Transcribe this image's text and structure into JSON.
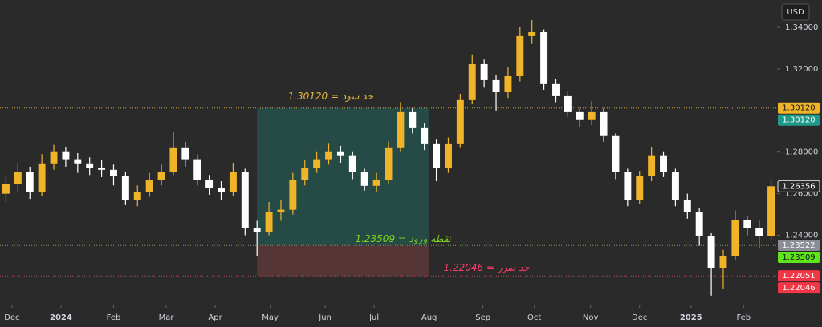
{
  "chart_data": {
    "type": "candlestick",
    "currency": "USD",
    "xlim": [
      -0.5,
      64.5
    ],
    "ylim": [
      1.2067,
      1.3531
    ],
    "xticks": [
      {
        "value": 0.5,
        "label": "Dec"
      },
      {
        "value": 4.6,
        "label": "2024"
      },
      {
        "value": 9.0,
        "label": "Feb"
      },
      {
        "value": 13.4,
        "label": "Mar"
      },
      {
        "value": 17.5,
        "label": "Apr"
      },
      {
        "value": 22.1,
        "label": "May"
      },
      {
        "value": 26.7,
        "label": "Jun"
      },
      {
        "value": 30.8,
        "label": "Jul"
      },
      {
        "value": 35.4,
        "label": "Aug"
      },
      {
        "value": 39.9,
        "label": "Sep"
      },
      {
        "value": 44.2,
        "label": "Oct"
      },
      {
        "value": 48.9,
        "label": "Nov"
      },
      {
        "value": 53.0,
        "label": "Dec"
      },
      {
        "value": 57.3,
        "label": "2025"
      },
      {
        "value": 61.7,
        "label": "Feb"
      }
    ],
    "yticks": [
      {
        "value": 1.34,
        "label": "1.34000"
      },
      {
        "value": 1.32,
        "label": "1.32000"
      },
      {
        "value": 1.28,
        "label": "1.28000"
      },
      {
        "value": 1.26,
        "label": "1.26000"
      },
      {
        "value": 1.24,
        "label": "1.24000"
      }
    ],
    "up_color": "#f0b429",
    "down_color": "#ffffff",
    "series": {
      "open": [
        1.26,
        1.2646,
        1.2704,
        1.2608,
        1.2742,
        1.28,
        1.2762,
        1.2742,
        1.2723,
        1.2715,
        1.2685,
        1.2569,
        1.2608,
        1.2665,
        1.2704,
        1.2819,
        1.2762,
        1.2665,
        1.2627,
        1.2608,
        1.2704,
        1.2435,
        1.2415,
        1.2512,
        1.2523,
        1.2665,
        1.2723,
        1.2762,
        1.28,
        1.2781,
        1.2704,
        1.2638,
        1.2665,
        1.2819,
        1.2992,
        1.2915,
        1.2838,
        1.2723,
        1.2838,
        1.305,
        1.3223,
        1.3146,
        1.3088,
        1.3165,
        1.3358,
        1.3377,
        1.3127,
        1.3069,
        1.2992,
        1.2954,
        1.2992,
        1.2877,
        1.2704,
        1.2569,
        1.2685,
        1.2781,
        1.2704,
        1.2569,
        1.2512,
        1.2396,
        1.2242,
        1.23,
        1.2473,
        1.2435,
        1.2396
      ],
      "high": [
        1.269,
        1.2745,
        1.273,
        1.279,
        1.2835,
        1.2825,
        1.2795,
        1.2775,
        1.276,
        1.274,
        1.2705,
        1.264,
        1.27,
        1.274,
        1.2895,
        1.285,
        1.279,
        1.269,
        1.266,
        1.2745,
        1.272,
        1.247,
        1.256,
        1.257,
        1.27,
        1.276,
        1.28,
        1.284,
        1.283,
        1.28,
        1.272,
        1.27,
        1.285,
        1.304,
        1.301,
        1.294,
        1.286,
        1.287,
        1.308,
        1.327,
        1.3245,
        1.317,
        1.321,
        1.34,
        1.3435,
        1.339,
        1.315,
        1.309,
        1.301,
        1.3045,
        1.301,
        1.289,
        1.272,
        1.271,
        1.2825,
        1.28,
        1.272,
        1.26,
        1.253,
        1.241,
        1.233,
        1.252,
        1.249,
        1.247,
        1.2665
      ],
      "low": [
        1.256,
        1.261,
        1.2575,
        1.259,
        1.2715,
        1.273,
        1.27,
        1.269,
        1.268,
        1.264,
        1.2545,
        1.254,
        1.2585,
        1.264,
        1.269,
        1.273,
        1.264,
        1.2595,
        1.257,
        1.259,
        1.24,
        1.23,
        1.24,
        1.247,
        1.25,
        1.264,
        1.27,
        1.274,
        1.2745,
        1.267,
        1.2615,
        1.261,
        1.265,
        1.28,
        1.289,
        1.281,
        1.266,
        1.27,
        1.282,
        1.303,
        1.311,
        1.3,
        1.306,
        1.314,
        1.332,
        1.31,
        1.304,
        1.297,
        1.292,
        1.293,
        1.285,
        1.267,
        1.254,
        1.255,
        1.266,
        1.268,
        1.254,
        1.248,
        1.235,
        1.211,
        1.214,
        1.228,
        1.24,
        1.234,
        1.238
      ],
      "close": [
        1.2646,
        1.2704,
        1.2608,
        1.2742,
        1.28,
        1.2762,
        1.2742,
        1.2723,
        1.2715,
        1.2685,
        1.2569,
        1.2608,
        1.2665,
        1.2704,
        1.2819,
        1.2762,
        1.2665,
        1.2627,
        1.2608,
        1.2704,
        1.2435,
        1.2415,
        1.2512,
        1.2523,
        1.2665,
        1.2723,
        1.2762,
        1.28,
        1.2781,
        1.2704,
        1.2638,
        1.2665,
        1.2819,
        1.2992,
        1.2915,
        1.2838,
        1.2723,
        1.2838,
        1.305,
        1.3223,
        1.3146,
        1.3088,
        1.3165,
        1.3358,
        1.3377,
        1.3127,
        1.3069,
        1.2992,
        1.2954,
        1.2992,
        1.2877,
        1.2704,
        1.2569,
        1.2685,
        1.2781,
        1.2704,
        1.2569,
        1.2512,
        1.2396,
        1.2242,
        1.23,
        1.2473,
        1.2435,
        1.2396,
        1.2636
      ]
    },
    "position": {
      "x_start": 21,
      "x_end": 35.4,
      "target": 1.3012,
      "entry": 1.23509,
      "stop": 1.22046
    },
    "annotations": [
      {
        "text": "حد سود = 1.30120",
        "color": "#e8b83a"
      },
      {
        "text": "نقطه ورود = 1.23509",
        "color": "#7ed321"
      },
      {
        "text": "حد ضرر = 1.22046",
        "color": "#ff3d6e"
      }
    ],
    "price_labels": [
      {
        "value": 1.3012,
        "label": "1.30120",
        "color": "#f0b429"
      },
      {
        "value": 1.3012,
        "label": "1.30120",
        "color": "#1e9a8a"
      },
      {
        "value": 1.26356,
        "label": "1.26356",
        "color": "#2a2a2a"
      },
      {
        "value": 1.23522,
        "label": "1.23522",
        "color": "#8a8d96"
      },
      {
        "value": 1.23509,
        "label": "1.23509",
        "color": "#5ee61a"
      },
      {
        "value": 1.22051,
        "label": "1.22051",
        "color": "#f23645"
      },
      {
        "value": 1.22046,
        "label": "1.22046",
        "color": "#f23645"
      }
    ]
  }
}
